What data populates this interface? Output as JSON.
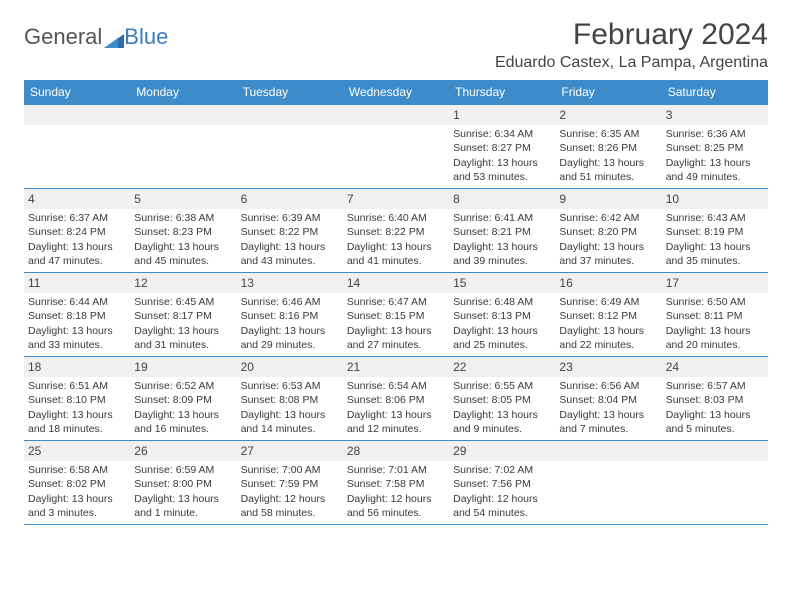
{
  "brand": {
    "part1": "General",
    "part2": "Blue"
  },
  "title": "February 2024",
  "location": "Eduardo Castex, La Pampa, Argentina",
  "colors": {
    "header_bg": "#3d8bc9",
    "header_text": "#ffffff",
    "daynum_bg": "#eef0f1",
    "border": "#3d8bc9",
    "text": "#3a3a3a",
    "title_text": "#444444",
    "logo_gray": "#555555",
    "logo_blue": "#3a7cbf"
  },
  "weekdays": [
    "Sunday",
    "Monday",
    "Tuesday",
    "Wednesday",
    "Thursday",
    "Friday",
    "Saturday"
  ],
  "weeks": [
    [
      null,
      null,
      null,
      null,
      {
        "n": "1",
        "sr": "Sunrise: 6:34 AM",
        "ss": "Sunset: 8:27 PM",
        "dl": "Daylight: 13 hours and 53 minutes."
      },
      {
        "n": "2",
        "sr": "Sunrise: 6:35 AM",
        "ss": "Sunset: 8:26 PM",
        "dl": "Daylight: 13 hours and 51 minutes."
      },
      {
        "n": "3",
        "sr": "Sunrise: 6:36 AM",
        "ss": "Sunset: 8:25 PM",
        "dl": "Daylight: 13 hours and 49 minutes."
      }
    ],
    [
      {
        "n": "4",
        "sr": "Sunrise: 6:37 AM",
        "ss": "Sunset: 8:24 PM",
        "dl": "Daylight: 13 hours and 47 minutes."
      },
      {
        "n": "5",
        "sr": "Sunrise: 6:38 AM",
        "ss": "Sunset: 8:23 PM",
        "dl": "Daylight: 13 hours and 45 minutes."
      },
      {
        "n": "6",
        "sr": "Sunrise: 6:39 AM",
        "ss": "Sunset: 8:22 PM",
        "dl": "Daylight: 13 hours and 43 minutes."
      },
      {
        "n": "7",
        "sr": "Sunrise: 6:40 AM",
        "ss": "Sunset: 8:22 PM",
        "dl": "Daylight: 13 hours and 41 minutes."
      },
      {
        "n": "8",
        "sr": "Sunrise: 6:41 AM",
        "ss": "Sunset: 8:21 PM",
        "dl": "Daylight: 13 hours and 39 minutes."
      },
      {
        "n": "9",
        "sr": "Sunrise: 6:42 AM",
        "ss": "Sunset: 8:20 PM",
        "dl": "Daylight: 13 hours and 37 minutes."
      },
      {
        "n": "10",
        "sr": "Sunrise: 6:43 AM",
        "ss": "Sunset: 8:19 PM",
        "dl": "Daylight: 13 hours and 35 minutes."
      }
    ],
    [
      {
        "n": "11",
        "sr": "Sunrise: 6:44 AM",
        "ss": "Sunset: 8:18 PM",
        "dl": "Daylight: 13 hours and 33 minutes."
      },
      {
        "n": "12",
        "sr": "Sunrise: 6:45 AM",
        "ss": "Sunset: 8:17 PM",
        "dl": "Daylight: 13 hours and 31 minutes."
      },
      {
        "n": "13",
        "sr": "Sunrise: 6:46 AM",
        "ss": "Sunset: 8:16 PM",
        "dl": "Daylight: 13 hours and 29 minutes."
      },
      {
        "n": "14",
        "sr": "Sunrise: 6:47 AM",
        "ss": "Sunset: 8:15 PM",
        "dl": "Daylight: 13 hours and 27 minutes."
      },
      {
        "n": "15",
        "sr": "Sunrise: 6:48 AM",
        "ss": "Sunset: 8:13 PM",
        "dl": "Daylight: 13 hours and 25 minutes."
      },
      {
        "n": "16",
        "sr": "Sunrise: 6:49 AM",
        "ss": "Sunset: 8:12 PM",
        "dl": "Daylight: 13 hours and 22 minutes."
      },
      {
        "n": "17",
        "sr": "Sunrise: 6:50 AM",
        "ss": "Sunset: 8:11 PM",
        "dl": "Daylight: 13 hours and 20 minutes."
      }
    ],
    [
      {
        "n": "18",
        "sr": "Sunrise: 6:51 AM",
        "ss": "Sunset: 8:10 PM",
        "dl": "Daylight: 13 hours and 18 minutes."
      },
      {
        "n": "19",
        "sr": "Sunrise: 6:52 AM",
        "ss": "Sunset: 8:09 PM",
        "dl": "Daylight: 13 hours and 16 minutes."
      },
      {
        "n": "20",
        "sr": "Sunrise: 6:53 AM",
        "ss": "Sunset: 8:08 PM",
        "dl": "Daylight: 13 hours and 14 minutes."
      },
      {
        "n": "21",
        "sr": "Sunrise: 6:54 AM",
        "ss": "Sunset: 8:06 PM",
        "dl": "Daylight: 13 hours and 12 minutes."
      },
      {
        "n": "22",
        "sr": "Sunrise: 6:55 AM",
        "ss": "Sunset: 8:05 PM",
        "dl": "Daylight: 13 hours and 9 minutes."
      },
      {
        "n": "23",
        "sr": "Sunrise: 6:56 AM",
        "ss": "Sunset: 8:04 PM",
        "dl": "Daylight: 13 hours and 7 minutes."
      },
      {
        "n": "24",
        "sr": "Sunrise: 6:57 AM",
        "ss": "Sunset: 8:03 PM",
        "dl": "Daylight: 13 hours and 5 minutes."
      }
    ],
    [
      {
        "n": "25",
        "sr": "Sunrise: 6:58 AM",
        "ss": "Sunset: 8:02 PM",
        "dl": "Daylight: 13 hours and 3 minutes."
      },
      {
        "n": "26",
        "sr": "Sunrise: 6:59 AM",
        "ss": "Sunset: 8:00 PM",
        "dl": "Daylight: 13 hours and 1 minute."
      },
      {
        "n": "27",
        "sr": "Sunrise: 7:00 AM",
        "ss": "Sunset: 7:59 PM",
        "dl": "Daylight: 12 hours and 58 minutes."
      },
      {
        "n": "28",
        "sr": "Sunrise: 7:01 AM",
        "ss": "Sunset: 7:58 PM",
        "dl": "Daylight: 12 hours and 56 minutes."
      },
      {
        "n": "29",
        "sr": "Sunrise: 7:02 AM",
        "ss": "Sunset: 7:56 PM",
        "dl": "Daylight: 12 hours and 54 minutes."
      },
      null,
      null
    ]
  ]
}
